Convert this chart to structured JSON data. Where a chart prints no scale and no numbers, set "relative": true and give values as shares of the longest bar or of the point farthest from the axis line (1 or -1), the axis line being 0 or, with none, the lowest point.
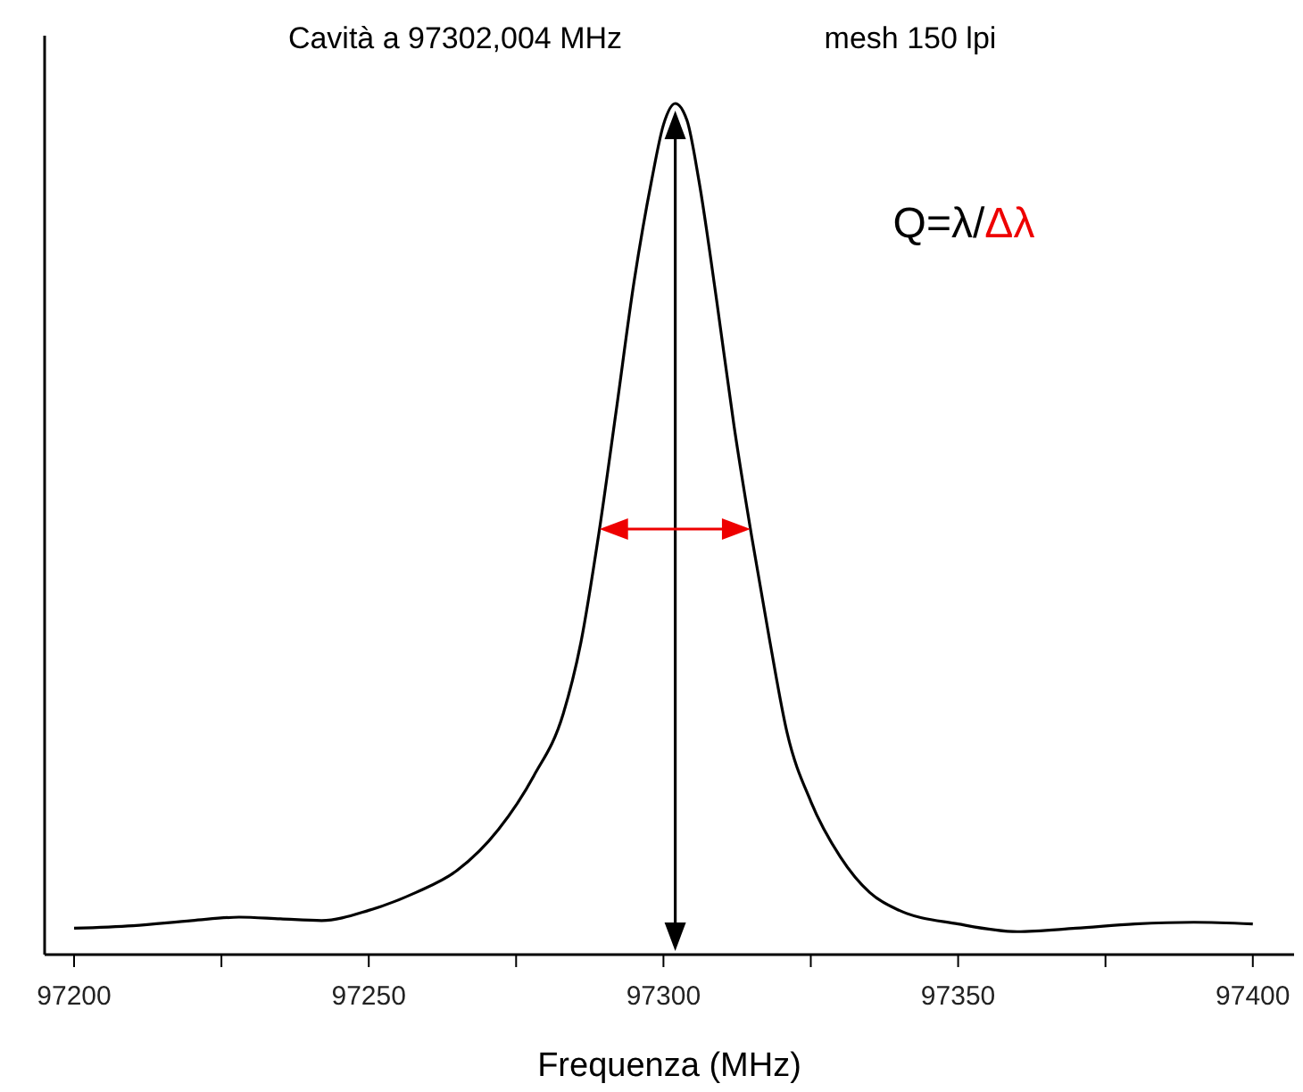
{
  "chart_data": {
    "type": "line",
    "title": "Cavità a 97302,004 MHz",
    "subtitle": "mesh 150 lpi",
    "xlabel": "Frequenza (MHz)",
    "relative": true,
    "color": "#000000",
    "x": [
      97200,
      97210,
      97220,
      97228,
      97235,
      97242,
      97250,
      97258,
      97265,
      97272,
      97278,
      97283,
      97286,
      97289,
      97292,
      97295,
      97298,
      97300,
      97302,
      97304,
      97306,
      97309,
      97312,
      97315,
      97318,
      97321,
      97325,
      97330,
      97335,
      97340,
      97350,
      97360,
      97370,
      97380,
      97390,
      97400
    ],
    "values": [
      0.031,
      0.034,
      0.04,
      0.044,
      0.042,
      0.04,
      0.052,
      0.073,
      0.099,
      0.147,
      0.21,
      0.283,
      0.367,
      0.493,
      0.64,
      0.79,
      0.91,
      0.975,
      1,
      0.98,
      0.91,
      0.77,
      0.62,
      0.49,
      0.37,
      0.26,
      0.18,
      0.115,
      0.073,
      0.052,
      0.036,
      0.027,
      0.031,
      0.036,
      0.038,
      0.036
    ],
    "xlim": [
      97195,
      97407
    ],
    "xticks": [
      97200,
      {
        "value": 97225,
        "label": null
      },
      97250,
      {
        "value": 97275,
        "label": null
      },
      97300,
      {
        "value": 97325,
        "label": null
      },
      97350,
      {
        "value": 97375,
        "label": null
      },
      97400
    ],
    "annotations": [
      "Q=λ/Δλ"
    ]
  }
}
